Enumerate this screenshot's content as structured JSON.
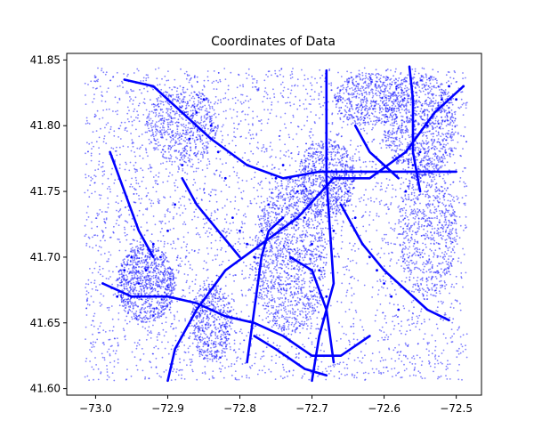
{
  "chart_data": {
    "type": "scatter",
    "title": "Coordinates of Data",
    "xlabel": "",
    "ylabel": "",
    "xlim": [
      -73.04,
      -72.465
    ],
    "ylim": [
      41.595,
      41.855
    ],
    "x_ticks": [
      -73.0,
      -72.9,
      -72.8,
      -72.7,
      -72.6,
      -72.5
    ],
    "x_tick_labels": [
      "−73.0",
      "−72.9",
      "−72.8",
      "−72.7",
      "−72.6",
      "−72.5"
    ],
    "y_ticks": [
      41.6,
      41.65,
      41.7,
      41.75,
      41.8,
      41.85
    ],
    "y_tick_labels": [
      "41.60",
      "41.65",
      "41.70",
      "41.75",
      "41.80",
      "41.85"
    ],
    "grid": false,
    "point_color": "#0000ff",
    "point_alpha": 0.5,
    "series": [
      {
        "x": [
          -72.99,
          -72.97,
          -72.96,
          -72.95,
          -72.94,
          -72.93,
          -72.92,
          -72.91,
          -72.9,
          -72.89,
          -72.88,
          -72.87,
          -72.86,
          -72.85,
          -72.84,
          -72.83,
          -72.82,
          -72.81,
          -72.8,
          -72.79,
          -72.78,
          -72.77,
          -72.76,
          -72.75,
          -72.74,
          -72.73,
          -72.72,
          -72.71,
          -72.7,
          -72.69,
          -72.68,
          -72.67,
          -72.66,
          -72.65,
          -72.64,
          -72.63,
          -72.62,
          -72.61,
          -72.6,
          -72.59,
          -72.58,
          -72.57,
          -72.56,
          -72.55,
          -72.54,
          -72.53,
          -72.52,
          -72.51,
          -72.5,
          -72.49
        ],
        "y": [
          41.68,
          41.67,
          41.69,
          41.7,
          41.68,
          41.69,
          41.71,
          41.7,
          41.72,
          41.74,
          41.77,
          41.79,
          41.81,
          41.82,
          41.8,
          41.78,
          41.76,
          41.73,
          41.72,
          41.71,
          41.7,
          41.72,
          41.74,
          41.76,
          41.77,
          41.76,
          41.75,
          41.73,
          41.71,
          41.69,
          41.67,
          41.72,
          41.76,
          41.75,
          41.73,
          41.71,
          41.7,
          41.69,
          41.68,
          41.67,
          41.66,
          41.75,
          41.77,
          41.78,
          41.8,
          41.81,
          41.82,
          41.83,
          41.82,
          41.83
        ]
      }
    ]
  }
}
